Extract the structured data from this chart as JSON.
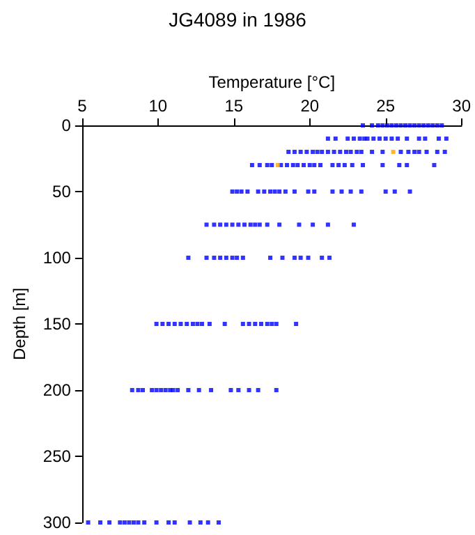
{
  "chart_data": {
    "type": "scatter",
    "title": "JG4089 in 1986",
    "xlabel": "Temperature [°C]",
    "ylabel": "Depth [m]",
    "xlim": [
      5,
      30
    ],
    "xticks": [
      5,
      10,
      15,
      20,
      25,
      30
    ],
    "ylim": [
      300,
      0
    ],
    "yticks": [
      0,
      50,
      100,
      150,
      200,
      250,
      300
    ],
    "grid": false,
    "marker": "square",
    "series": [
      {
        "color": "#0000ff",
        "x": [
          23.5,
          24.1,
          24.5,
          24.8,
          25.1,
          25.4,
          25.7,
          26,
          26.3,
          26.6,
          26.9,
          27.2,
          27.5,
          27.8,
          28.1,
          28.4,
          28.7
        ],
        "values": [
          0,
          0,
          0,
          0,
          0,
          0,
          0,
          0,
          0,
          0,
          0,
          0,
          0,
          0,
          0,
          0,
          0
        ]
      },
      {
        "color": "#0000ff",
        "x": [
          21.2,
          21.7,
          22.5,
          22.9,
          23.3,
          23.6,
          23.8,
          24.2,
          24.6,
          25,
          25.4,
          25.8,
          26.4,
          27.2,
          27.6,
          28.5,
          29
        ],
        "values": [
          10,
          10,
          10,
          10,
          10,
          10,
          10,
          10,
          10,
          10,
          10,
          10,
          10,
          10,
          10,
          10,
          10
        ]
      },
      {
        "color": "#0000ff",
        "x": [
          18.6,
          19,
          19.4,
          19.8,
          20.2,
          20.5,
          20.8,
          21.2,
          21.6,
          22,
          22.4,
          22.7,
          23.1,
          23.4,
          24.1,
          24.8,
          26,
          26.5,
          26.9,
          27.2,
          27.7,
          28.4,
          28.9
        ],
        "values": [
          20,
          20,
          20,
          20,
          20,
          20,
          20,
          20,
          20,
          20,
          20,
          20,
          20,
          20,
          20,
          20,
          20,
          20,
          20,
          20,
          20,
          20,
          20
        ]
      },
      {
        "color": "#0000ff",
        "x": [
          16.2,
          16.7,
          17.2,
          17.5,
          18.1,
          18.5,
          18.9,
          19.2,
          19.6,
          20,
          20.3,
          20.7,
          21.5,
          21.9,
          22.3,
          22.8,
          23.5,
          24.8,
          25.9,
          26.4,
          28.2
        ],
        "values": [
          30,
          30,
          30,
          30,
          30,
          30,
          30,
          30,
          30,
          30,
          30,
          30,
          30,
          30,
          30,
          30,
          30,
          30,
          30,
          30,
          30
        ]
      },
      {
        "color": "#0000ff",
        "x": [
          14.9,
          15.2,
          15.5,
          15.9,
          16.6,
          17,
          17.4,
          17.7,
          18,
          18.4,
          19,
          19.9,
          20.3,
          21.5,
          22.1,
          22.7,
          23.4,
          25,
          25.6,
          26.6
        ],
        "values": [
          50,
          50,
          50,
          50,
          50,
          50,
          50,
          50,
          50,
          50,
          50,
          50,
          50,
          50,
          50,
          50,
          50,
          50,
          50,
          50
        ]
      },
      {
        "color": "#0000ff",
        "x": [
          13.2,
          13.7,
          14.1,
          14.5,
          14.9,
          15.3,
          15.7,
          16.1,
          16.4,
          16.7,
          17.2,
          18,
          19.3,
          20.2,
          21.2,
          22.9
        ],
        "values": [
          75,
          75,
          75,
          75,
          75,
          75,
          75,
          75,
          75,
          75,
          75,
          75,
          75,
          75,
          75,
          75
        ]
      },
      {
        "color": "#0000ff",
        "x": [
          12,
          13.2,
          13.7,
          14.1,
          14.5,
          14.9,
          15.2,
          15.6,
          17.4,
          18.2,
          19,
          19.4,
          19.9,
          20.8,
          21.3
        ],
        "values": [
          100,
          100,
          100,
          100,
          100,
          100,
          100,
          100,
          100,
          100,
          100,
          100,
          100,
          100,
          100
        ]
      },
      {
        "color": "#0000ff",
        "x": [
          9.9,
          10.3,
          10.7,
          11.1,
          11.5,
          11.9,
          12.3,
          12.6,
          12.9,
          13.4,
          14.4,
          15.6,
          16,
          16.4,
          16.8,
          17.2,
          17.5,
          17.8,
          19.1
        ],
        "values": [
          150,
          150,
          150,
          150,
          150,
          150,
          150,
          150,
          150,
          150,
          150,
          150,
          150,
          150,
          150,
          150,
          150,
          150,
          150
        ]
      },
      {
        "color": "#0000ff",
        "x": [
          8.3,
          8.7,
          9,
          9.6,
          9.9,
          10.2,
          10.5,
          10.8,
          11,
          11.3,
          12,
          12.7,
          13.5,
          14.8,
          15.3,
          16,
          16.6,
          17.8
        ],
        "values": [
          200,
          200,
          200,
          200,
          200,
          200,
          200,
          200,
          200,
          200,
          200,
          200,
          200,
          200,
          200,
          200,
          200,
          200
        ]
      },
      {
        "color": "#0000ff",
        "x": [
          5.4,
          6.2,
          6.8,
          7.5,
          7.8,
          8.1,
          8.4,
          8.7,
          9.1,
          9.9,
          10.7,
          11.1,
          12.1,
          12.8,
          13.3,
          14
        ],
        "values": [
          300,
          300,
          300,
          300,
          300,
          300,
          300,
          300,
          300,
          300,
          300,
          300,
          300,
          300,
          300,
          300
        ]
      },
      {
        "color": "#ffa500",
        "x": [
          25.5,
          17.9
        ],
        "values": [
          20,
          30
        ]
      }
    ]
  }
}
